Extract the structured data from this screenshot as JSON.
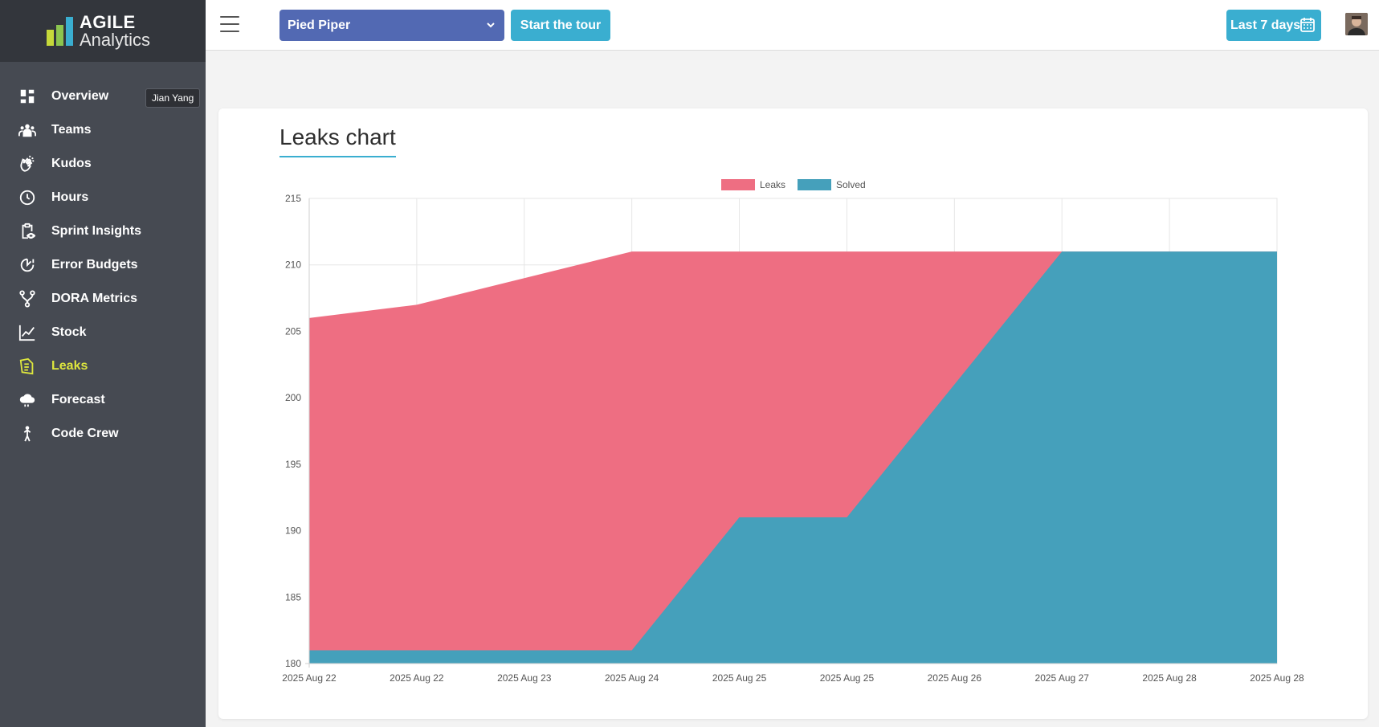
{
  "app": {
    "logo_line1": "AGILE",
    "logo_line2": "Analytics"
  },
  "sidebar": {
    "tooltip": "Jian Yang",
    "items": [
      {
        "label": "Overview",
        "icon": "dashboard-icon"
      },
      {
        "label": "Teams",
        "icon": "teams-icon"
      },
      {
        "label": "Kudos",
        "icon": "clapping-hands-icon"
      },
      {
        "label": "Hours",
        "icon": "clock-icon"
      },
      {
        "label": "Sprint Insights",
        "icon": "clipboard-eye-icon"
      },
      {
        "label": "Error Budgets",
        "icon": "error-budget-gauge-icon"
      },
      {
        "label": "DORA Metrics",
        "icon": "branch-icon"
      },
      {
        "label": "Stock",
        "icon": "line-chart-icon"
      },
      {
        "label": "Leaks",
        "icon": "leaks-icon",
        "active": true
      },
      {
        "label": "Forecast",
        "icon": "cloud-icon"
      },
      {
        "label": "Code Crew",
        "icon": "person-icon"
      }
    ]
  },
  "topbar": {
    "team_select": "Pied Piper",
    "tour_button": "Start the tour",
    "date_range": "Last 7 days"
  },
  "colors": {
    "leaks": "#ee6e82",
    "solved": "#45a0bb",
    "accent": "#3aaed0",
    "active_nav": "#dde63e"
  },
  "card": {
    "title": "Leaks chart"
  },
  "chart_data": {
    "type": "area",
    "x": [
      "2025 Aug 22",
      "2025 Aug 22",
      "2025 Aug 23",
      "2025 Aug 24",
      "2025 Aug 25",
      "2025 Aug 25",
      "2025 Aug 26",
      "2025 Aug 27",
      "2025 Aug 28",
      "2025 Aug 28"
    ],
    "series": [
      {
        "name": "Leaks",
        "values": [
          206,
          207,
          209,
          211,
          211,
          211,
          211,
          211,
          211,
          211
        ]
      },
      {
        "name": "Solved",
        "values": [
          181,
          181,
          181,
          181,
          191,
          191,
          201,
          211,
          211,
          211
        ]
      }
    ],
    "ylim": [
      180,
      215
    ],
    "yticks": [
      180,
      185,
      190,
      195,
      200,
      205,
      210,
      215
    ],
    "grid": true,
    "legend": "top-center"
  }
}
